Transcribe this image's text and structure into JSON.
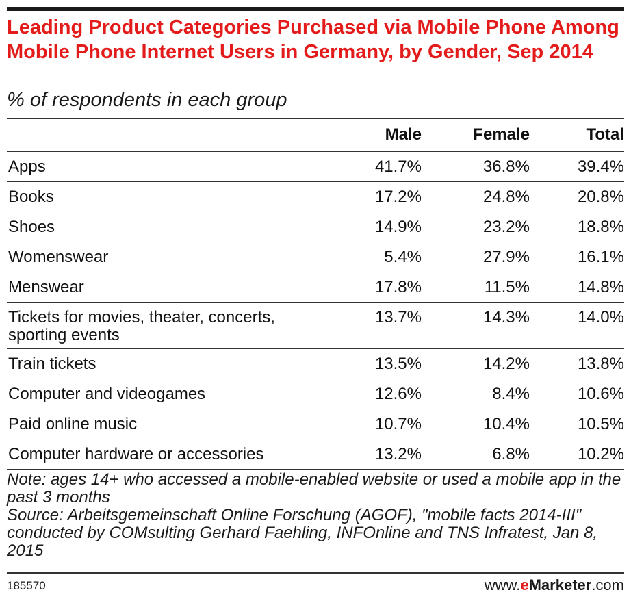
{
  "chart_data": {
    "type": "table",
    "title": "Leading Product Categories Purchased via Mobile Phone Among Mobile Phone Internet Users in Germany, by Gender, Sep 2014",
    "subtitle": "% of respondents in each group",
    "columns": [
      "",
      "Male",
      "Female",
      "Total"
    ],
    "rows": [
      {
        "category": "Apps",
        "male": "41.7%",
        "female": "36.8%",
        "total": "39.4%"
      },
      {
        "category": "Books",
        "male": "17.2%",
        "female": "24.8%",
        "total": "20.8%"
      },
      {
        "category": "Shoes",
        "male": "14.9%",
        "female": "23.2%",
        "total": "18.8%"
      },
      {
        "category": "Womenswear",
        "male": "5.4%",
        "female": "27.9%",
        "total": "16.1%"
      },
      {
        "category": "Menswear",
        "male": "17.8%",
        "female": "11.5%",
        "total": "14.8%"
      },
      {
        "category": "Tickets for movies, theater, concerts, sporting events",
        "male": "13.7%",
        "female": "14.3%",
        "total": "14.0%"
      },
      {
        "category": "Train tickets",
        "male": "13.5%",
        "female": "14.2%",
        "total": "13.8%"
      },
      {
        "category": "Computer and videogames",
        "male": "12.6%",
        "female": "8.4%",
        "total": "10.6%"
      },
      {
        "category": "Paid online music",
        "male": "10.7%",
        "female": "10.4%",
        "total": "10.5%"
      },
      {
        "category": "Computer hardware or accessories",
        "male": "13.2%",
        "female": "6.8%",
        "total": "10.2%"
      }
    ],
    "note": "Note: ages 14+ who accessed a mobile-enabled website or used a mobile app in the past 3 months",
    "source": "Source: Arbeitsgemeinschaft Online Forschung (AGOF), \"mobile facts 2014-III\" conducted by COMsulting Gerhard Faehling, INFOnline and TNS Infratest, Jan 8, 2015"
  },
  "footer": {
    "chart_id": "185570",
    "brand_prefix": "www.",
    "brand_e": "e",
    "brand_name": "Marketer",
    "brand_suffix": ".com"
  },
  "colors": {
    "title": "#e31b1b",
    "text": "#1a1a1a",
    "rule": "#333333"
  }
}
